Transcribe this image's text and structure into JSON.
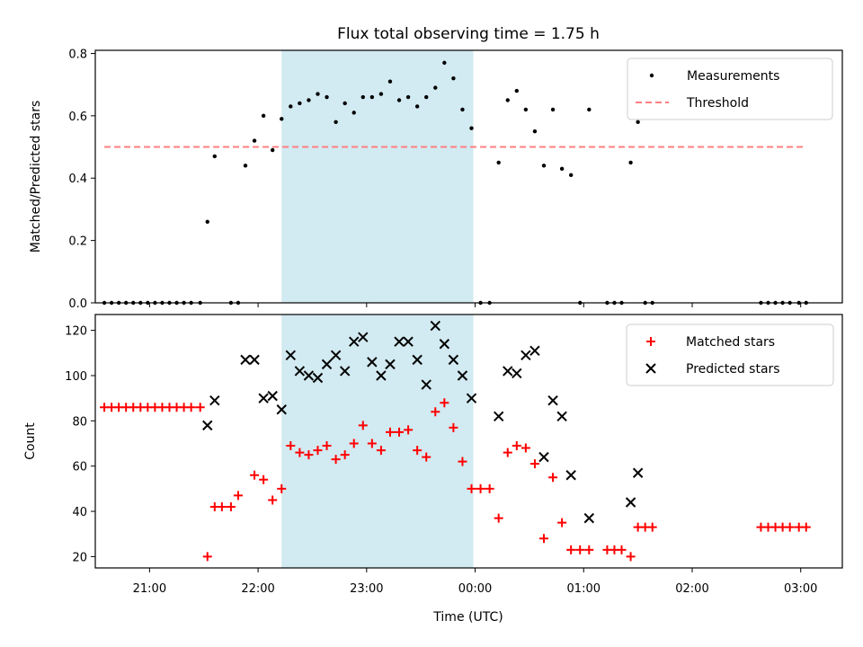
{
  "chart_data": {
    "type": "scatter",
    "title": "Flux total observing time = 1.75 h",
    "xlabel": "Time (UTC)",
    "x_unit": "UTC time",
    "xlim": [
      "20:30",
      "03:23"
    ],
    "xticks": [
      "21:00",
      "22:00",
      "23:00",
      "00:00",
      "01:00",
      "02:00",
      "03:00"
    ],
    "shaded_interval": {
      "start": "22:13",
      "end": "23:59",
      "color": "#add8e6"
    },
    "panels": [
      {
        "ylabel": "Matched/Predicted stars",
        "ylim": [
          0,
          0.81
        ],
        "yticks": [
          "0.0",
          "0.2",
          "0.4",
          "0.6",
          "0.8"
        ],
        "legend_position": "top-right",
        "series": [
          {
            "name": "Measurements",
            "marker": "dot",
            "color": "#000000",
            "points": [
              [
                "20:35",
                0
              ],
              [
                "20:39",
                0
              ],
              [
                "20:43",
                0
              ],
              [
                "20:47",
                0
              ],
              [
                "20:51",
                0
              ],
              [
                "20:55",
                0
              ],
              [
                "20:59",
                0
              ],
              [
                "21:03",
                0
              ],
              [
                "21:07",
                0
              ],
              [
                "21:11",
                0
              ],
              [
                "21:15",
                0
              ],
              [
                "21:19",
                0
              ],
              [
                "21:23",
                0
              ],
              [
                "21:28",
                0
              ],
              [
                "21:32",
                0.26
              ],
              [
                "21:36",
                0.47
              ],
              [
                "21:45",
                0
              ],
              [
                "21:49",
                0
              ],
              [
                "21:53",
                0.44
              ],
              [
                "21:58",
                0.52
              ],
              [
                "22:03",
                0.6
              ],
              [
                "22:08",
                0.49
              ],
              [
                "22:13",
                0.59
              ],
              [
                "22:18",
                0.63
              ],
              [
                "22:23",
                0.64
              ],
              [
                "22:28",
                0.65
              ],
              [
                "22:33",
                0.67
              ],
              [
                "22:38",
                0.66
              ],
              [
                "22:43",
                0.58
              ],
              [
                "22:48",
                0.64
              ],
              [
                "22:53",
                0.61
              ],
              [
                "22:58",
                0.66
              ],
              [
                "23:03",
                0.66
              ],
              [
                "23:08",
                0.67
              ],
              [
                "23:13",
                0.71
              ],
              [
                "23:18",
                0.65
              ],
              [
                "23:23",
                0.66
              ],
              [
                "23:28",
                0.63
              ],
              [
                "23:33",
                0.66
              ],
              [
                "23:38",
                0.69
              ],
              [
                "23:43",
                0.77
              ],
              [
                "23:48",
                0.72
              ],
              [
                "23:53",
                0.62
              ],
              [
                "23:58",
                0.56
              ],
              [
                "00:03",
                0
              ],
              [
                "00:08",
                0
              ],
              [
                "00:13",
                0.45
              ],
              [
                "00:18",
                0.65
              ],
              [
                "00:23",
                0.68
              ],
              [
                "00:28",
                0.62
              ],
              [
                "00:33",
                0.55
              ],
              [
                "00:38",
                0.44
              ],
              [
                "00:43",
                0.62
              ],
              [
                "00:48",
                0.43
              ],
              [
                "00:53",
                0.41
              ],
              [
                "00:58",
                0
              ],
              [
                "01:03",
                0.62
              ],
              [
                "01:13",
                0
              ],
              [
                "01:17",
                0
              ],
              [
                "01:21",
                0
              ],
              [
                "01:26",
                0.45
              ],
              [
                "01:30",
                0.58
              ],
              [
                "01:34",
                0
              ],
              [
                "01:38",
                0
              ],
              [
                "02:38",
                0
              ],
              [
                "02:42",
                0
              ],
              [
                "02:46",
                0
              ],
              [
                "02:50",
                0
              ],
              [
                "02:54",
                0
              ],
              [
                "02:59",
                0
              ],
              [
                "03:03",
                0
              ]
            ]
          },
          {
            "name": "Threshold",
            "marker": "dashed-line",
            "color": "#ff7f7f",
            "points": [
              [
                "20:35",
                0.5
              ],
              [
                "03:03",
                0.5
              ]
            ]
          }
        ]
      },
      {
        "ylabel": "Count",
        "ylim": [
          15,
          127
        ],
        "yticks": [
          "20",
          "40",
          "60",
          "80",
          "100",
          "120"
        ],
        "legend_position": "top-right",
        "series": [
          {
            "name": "Matched stars",
            "marker": "plus",
            "color": "#ff0000",
            "points": [
              [
                "20:35",
                86
              ],
              [
                "20:39",
                86
              ],
              [
                "20:43",
                86
              ],
              [
                "20:47",
                86
              ],
              [
                "20:51",
                86
              ],
              [
                "20:55",
                86
              ],
              [
                "20:59",
                86
              ],
              [
                "21:03",
                86
              ],
              [
                "21:07",
                86
              ],
              [
                "21:11",
                86
              ],
              [
                "21:15",
                86
              ],
              [
                "21:19",
                86
              ],
              [
                "21:23",
                86
              ],
              [
                "21:28",
                86
              ],
              [
                "21:32",
                20
              ],
              [
                "21:36",
                42
              ],
              [
                "21:40",
                42
              ],
              [
                "21:45",
                42
              ],
              [
                "21:49",
                47
              ],
              [
                "21:58",
                56
              ],
              [
                "22:03",
                54
              ],
              [
                "22:08",
                45
              ],
              [
                "22:13",
                50
              ],
              [
                "22:18",
                69
              ],
              [
                "22:23",
                66
              ],
              [
                "22:28",
                65
              ],
              [
                "22:33",
                67
              ],
              [
                "22:38",
                69
              ],
              [
                "22:43",
                63
              ],
              [
                "22:48",
                65
              ],
              [
                "22:53",
                70
              ],
              [
                "22:58",
                78
              ],
              [
                "23:03",
                70
              ],
              [
                "23:08",
                67
              ],
              [
                "23:13",
                75
              ],
              [
                "23:18",
                75
              ],
              [
                "23:23",
                76
              ],
              [
                "23:28",
                67
              ],
              [
                "23:33",
                64
              ],
              [
                "23:38",
                84
              ],
              [
                "23:43",
                88
              ],
              [
                "23:48",
                77
              ],
              [
                "23:53",
                62
              ],
              [
                "23:58",
                50
              ],
              [
                "00:03",
                50
              ],
              [
                "00:08",
                50
              ],
              [
                "00:13",
                37
              ],
              [
                "00:18",
                66
              ],
              [
                "00:23",
                69
              ],
              [
                "00:28",
                68
              ],
              [
                "00:33",
                61
              ],
              [
                "00:38",
                28
              ],
              [
                "00:43",
                55
              ],
              [
                "00:48",
                35
              ],
              [
                "00:53",
                23
              ],
              [
                "00:58",
                23
              ],
              [
                "01:03",
                23
              ],
              [
                "01:13",
                23
              ],
              [
                "01:17",
                23
              ],
              [
                "01:21",
                23
              ],
              [
                "01:26",
                20
              ],
              [
                "01:30",
                33
              ],
              [
                "01:34",
                33
              ],
              [
                "01:38",
                33
              ],
              [
                "02:38",
                33
              ],
              [
                "02:42",
                33
              ],
              [
                "02:46",
                33
              ],
              [
                "02:50",
                33
              ],
              [
                "02:54",
                33
              ],
              [
                "02:59",
                33
              ],
              [
                "03:03",
                33
              ]
            ]
          },
          {
            "name": "Predicted stars",
            "marker": "x",
            "color": "#000000",
            "points": [
              [
                "21:32",
                78
              ],
              [
                "21:36",
                89
              ],
              [
                "21:53",
                107
              ],
              [
                "21:58",
                107
              ],
              [
                "22:03",
                90
              ],
              [
                "22:08",
                91
              ],
              [
                "22:13",
                85
              ],
              [
                "22:18",
                109
              ],
              [
                "22:23",
                102
              ],
              [
                "22:28",
                100
              ],
              [
                "22:33",
                99
              ],
              [
                "22:38",
                105
              ],
              [
                "22:43",
                109
              ],
              [
                "22:48",
                102
              ],
              [
                "22:53",
                115
              ],
              [
                "22:58",
                117
              ],
              [
                "23:03",
                106
              ],
              [
                "23:08",
                100
              ],
              [
                "23:13",
                105
              ],
              [
                "23:18",
                115
              ],
              [
                "23:23",
                115
              ],
              [
                "23:28",
                107
              ],
              [
                "23:33",
                96
              ],
              [
                "23:38",
                122
              ],
              [
                "23:43",
                114
              ],
              [
                "23:48",
                107
              ],
              [
                "23:53",
                100
              ],
              [
                "23:58",
                90
              ],
              [
                "00:13",
                82
              ],
              [
                "00:18",
                102
              ],
              [
                "00:23",
                101
              ],
              [
                "00:28",
                109
              ],
              [
                "00:33",
                111
              ],
              [
                "00:38",
                64
              ],
              [
                "00:43",
                89
              ],
              [
                "00:48",
                82
              ],
              [
                "00:53",
                56
              ],
              [
                "01:03",
                37
              ],
              [
                "01:26",
                44
              ],
              [
                "01:30",
                57
              ]
            ]
          }
        ]
      }
    ]
  }
}
